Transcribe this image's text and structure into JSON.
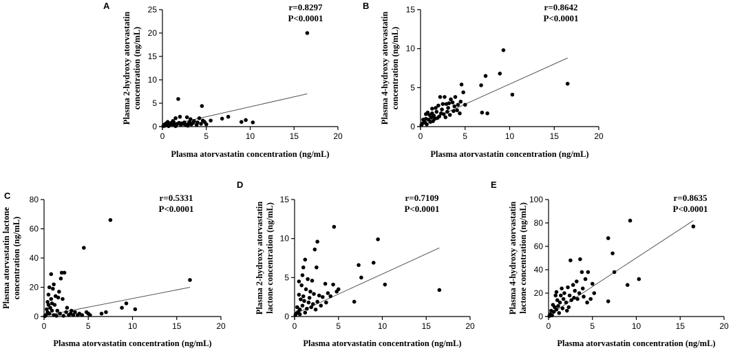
{
  "chart_data": [
    {
      "panel": "A",
      "type": "scatter",
      "xlabel": "Plasma atorvastatin concentration (ng/mL)",
      "ylabel_lines": [
        "Plasma 2-hydroxy atorvastatin",
        "concentration (ng/mL)"
      ],
      "xlim": [
        0,
        20
      ],
      "ylim": [
        0,
        25
      ],
      "xticks": [
        0,
        5,
        10,
        15,
        20
      ],
      "yticks": [
        0,
        5,
        10,
        15,
        20,
        25
      ],
      "r": "r=0.8297",
      "p": "P<0.0001",
      "fit": {
        "x": [
          0,
          16.5
        ],
        "y": [
          0.0,
          7.0
        ]
      },
      "points": [
        [
          16.5,
          20
        ],
        [
          1.8,
          5.9
        ],
        [
          4.5,
          4.4
        ],
        [
          7.5,
          2.1
        ],
        [
          6.8,
          1.7
        ],
        [
          9.5,
          1.4
        ],
        [
          9.0,
          1.0
        ],
        [
          10.3,
          0.9
        ],
        [
          2.0,
          2.1
        ],
        [
          2.8,
          2.0
        ],
        [
          3.2,
          1.6
        ],
        [
          1.5,
          1.8
        ],
        [
          4.2,
          1.8
        ],
        [
          3.6,
          1.2
        ],
        [
          4.8,
          1.0
        ],
        [
          5.5,
          1.3
        ],
        [
          0.6,
          1.0
        ],
        [
          1.2,
          1.2
        ],
        [
          2.5,
          0.9
        ],
        [
          3.0,
          0.7
        ],
        [
          1.0,
          0.8
        ],
        [
          0.3,
          0.2
        ],
        [
          0.5,
          0.5
        ],
        [
          0.8,
          0.3
        ],
        [
          1.1,
          0.5
        ],
        [
          1.4,
          0.3
        ],
        [
          1.7,
          0.6
        ],
        [
          2.1,
          0.4
        ],
        [
          2.4,
          0.6
        ],
        [
          2.7,
          0.3
        ],
        [
          3.3,
          0.5
        ],
        [
          3.9,
          0.4
        ],
        [
          4.4,
          0.6
        ],
        [
          0.2,
          0.4
        ],
        [
          0.4,
          0.7
        ],
        [
          0.9,
          0.6
        ],
        [
          1.3,
          0.9
        ],
        [
          1.6,
          0.4
        ],
        [
          1.9,
          0.8
        ],
        [
          2.2,
          0.7
        ],
        [
          2.6,
          0.5
        ],
        [
          3.1,
          1.0
        ],
        [
          3.5,
          0.8
        ],
        [
          4.0,
          0.9
        ],
        [
          0.7,
          0.1
        ],
        [
          1.5,
          0.1
        ],
        [
          2.9,
          0.2
        ],
        [
          0.1,
          0.1
        ],
        [
          5.0,
          0.5
        ],
        [
          4.6,
          1.3
        ]
      ]
    },
    {
      "panel": "B",
      "type": "scatter",
      "xlabel": "Plasma atorvastatin concentration (ng/mL)",
      "ylabel_lines": [
        "Plasma 4-hydroxy atorvastatin",
        "concentration (ng/mL)"
      ],
      "xlim": [
        0,
        20
      ],
      "ylim": [
        0,
        15
      ],
      "xticks": [
        0,
        5,
        10,
        15,
        20
      ],
      "yticks": [
        0,
        5,
        10,
        15
      ],
      "r": "r=0.8642",
      "p": "P<0.0001",
      "fit": {
        "x": [
          0,
          16.5
        ],
        "y": [
          0.3,
          8.8
        ]
      },
      "points": [
        [
          9.3,
          9.8
        ],
        [
          8.9,
          6.8
        ],
        [
          7.3,
          6.5
        ],
        [
          6.8,
          5.3
        ],
        [
          16.5,
          5.5
        ],
        [
          10.3,
          4.1
        ],
        [
          4.8,
          4.4
        ],
        [
          4.6,
          5.4
        ],
        [
          2.2,
          3.8
        ],
        [
          2.7,
          3.8
        ],
        [
          3.4,
          3.5
        ],
        [
          3.9,
          3.8
        ],
        [
          4.2,
          2.8
        ],
        [
          3.6,
          3.1
        ],
        [
          2.9,
          2.9
        ],
        [
          1.7,
          2.4
        ],
        [
          1.3,
          2.3
        ],
        [
          2.0,
          2.7
        ],
        [
          2.4,
          2.2
        ],
        [
          3.1,
          2.4
        ],
        [
          3.8,
          2.6
        ],
        [
          4.5,
          3.2
        ],
        [
          5.0,
          2.8
        ],
        [
          6.9,
          1.8
        ],
        [
          7.5,
          1.7
        ],
        [
          0.8,
          1.8
        ],
        [
          1.0,
          1.5
        ],
        [
          1.5,
          1.4
        ],
        [
          1.8,
          1.9
        ],
        [
          2.3,
          1.7
        ],
        [
          2.6,
          1.6
        ],
        [
          3.0,
          1.9
        ],
        [
          3.3,
          1.5
        ],
        [
          3.7,
          2.0
        ],
        [
          4.1,
          2.1
        ],
        [
          4.4,
          1.7
        ],
        [
          0.4,
          0.8
        ],
        [
          0.6,
          1.0
        ],
        [
          0.9,
          0.9
        ],
        [
          1.2,
          1.2
        ],
        [
          1.6,
          1.0
        ],
        [
          1.9,
          1.1
        ],
        [
          2.1,
          1.3
        ],
        [
          0.2,
          0.4
        ],
        [
          0.3,
          0.9
        ],
        [
          0.5,
          0.5
        ],
        [
          0.7,
          0.3
        ],
        [
          1.1,
          0.6
        ],
        [
          1.4,
          0.7
        ],
        [
          2.8,
          1.2
        ],
        [
          0.1,
          0.2
        ],
        [
          0.6,
          1.6
        ],
        [
          1.3,
          1.7
        ],
        [
          2.5,
          2.9
        ],
        [
          3.2,
          3.0
        ]
      ]
    },
    {
      "panel": "C",
      "type": "scatter",
      "xlabel": "Plasma atorvastatin concentration (ng/mL)",
      "ylabel_lines": [
        "Plasma atorvastatin lactone",
        "concentration (ng/mL)"
      ],
      "xlim": [
        0,
        20
      ],
      "ylim": [
        0,
        80
      ],
      "xticks": [
        0,
        5,
        10,
        15,
        20
      ],
      "yticks": [
        0,
        20,
        40,
        60,
        80
      ],
      "r": "r=0.5331",
      "p": "P<0.0001",
      "fit": {
        "x": [
          0,
          16.5
        ],
        "y": [
          0.5,
          20.0
        ]
      },
      "points": [
        [
          7.5,
          66
        ],
        [
          4.5,
          47
        ],
        [
          16.5,
          25
        ],
        [
          2.0,
          30
        ],
        [
          2.3,
          30
        ],
        [
          1.9,
          26
        ],
        [
          0.8,
          29
        ],
        [
          0.6,
          20
        ],
        [
          1.0,
          19
        ],
        [
          0.5,
          15
        ],
        [
          1.3,
          14
        ],
        [
          1.6,
          13
        ],
        [
          2.1,
          12
        ],
        [
          0.4,
          10
        ],
        [
          0.9,
          9
        ],
        [
          1.2,
          8
        ],
        [
          0.7,
          6
        ],
        [
          0.3,
          5
        ],
        [
          1.5,
          4
        ],
        [
          9.3,
          9
        ],
        [
          8.8,
          6
        ],
        [
          10.3,
          5
        ],
        [
          7.0,
          3
        ],
        [
          6.5,
          2
        ],
        [
          2.5,
          3
        ],
        [
          3.0,
          2
        ],
        [
          3.5,
          3
        ],
        [
          4.0,
          2
        ],
        [
          4.8,
          3
        ],
        [
          5.2,
          1
        ],
        [
          2.8,
          1
        ],
        [
          3.3,
          1
        ],
        [
          3.8,
          1
        ],
        [
          4.3,
          1
        ],
        [
          1.8,
          2
        ],
        [
          1.1,
          1
        ],
        [
          0.2,
          1
        ],
        [
          0.6,
          2
        ],
        [
          0.4,
          3
        ],
        [
          0.9,
          4
        ],
        [
          1.4,
          0.5
        ],
        [
          2.2,
          0.5
        ],
        [
          0.1,
          0.3
        ],
        [
          5.0,
          2
        ],
        [
          3.1,
          4
        ],
        [
          2.6,
          6
        ],
        [
          1.7,
          17
        ],
        [
          1.1,
          22
        ],
        [
          0.8,
          12
        ],
        [
          0.5,
          8
        ]
      ]
    },
    {
      "panel": "D",
      "type": "scatter",
      "xlabel": "Plasma atorvastatin concentration (ng/mL)",
      "ylabel_lines": [
        "Plasma 2-hydroxy atorvastatin",
        "lactone concentration (ng/mL)"
      ],
      "xlim": [
        0,
        20
      ],
      "ylim": [
        0,
        15
      ],
      "xticks": [
        0,
        5,
        10,
        15,
        20
      ],
      "yticks": [
        0,
        5,
        10,
        15
      ],
      "r": "r=0.7109",
      "p": "P<0.0001",
      "fit": {
        "x": [
          0,
          16.5
        ],
        "y": [
          0.3,
          8.8
        ]
      },
      "points": [
        [
          4.5,
          11.5
        ],
        [
          9.5,
          9.9
        ],
        [
          2.6,
          9.6
        ],
        [
          2.3,
          8.6
        ],
        [
          9.0,
          6.9
        ],
        [
          7.3,
          6.6
        ],
        [
          7.6,
          5.0
        ],
        [
          10.3,
          4.1
        ],
        [
          16.5,
          3.4
        ],
        [
          1.2,
          7.3
        ],
        [
          1.0,
          6.3
        ],
        [
          2.5,
          6.3
        ],
        [
          0.9,
          5.3
        ],
        [
          1.5,
          4.8
        ],
        [
          2.0,
          4.6
        ],
        [
          3.5,
          4.2
        ],
        [
          4.4,
          4.1
        ],
        [
          4.8,
          3.2
        ],
        [
          6.8,
          1.9
        ],
        [
          0.8,
          4.0
        ],
        [
          1.3,
          3.5
        ],
        [
          1.8,
          3.2
        ],
        [
          2.2,
          2.9
        ],
        [
          2.8,
          2.7
        ],
        [
          3.2,
          2.5
        ],
        [
          3.8,
          3.0
        ],
        [
          0.5,
          2.8
        ],
        [
          0.7,
          2.2
        ],
        [
          1.1,
          2.0
        ],
        [
          1.6,
          1.8
        ],
        [
          2.1,
          1.6
        ],
        [
          2.6,
          1.9
        ],
        [
          3.0,
          1.4
        ],
        [
          0.3,
          1.2
        ],
        [
          0.6,
          0.9
        ],
        [
          0.9,
          1.4
        ],
        [
          1.4,
          1.0
        ],
        [
          1.9,
          1.2
        ],
        [
          2.4,
          0.9
        ],
        [
          0.2,
          0.4
        ],
        [
          0.4,
          0.6
        ],
        [
          0.1,
          0.2
        ],
        [
          0.6,
          0.3
        ],
        [
          1.2,
          0.5
        ],
        [
          3.6,
          1.8
        ],
        [
          4.1,
          2.6
        ],
        [
          5.0,
          3.5
        ],
        [
          1.0,
          2.6
        ],
        [
          0.5,
          4.5
        ],
        [
          1.7,
          2.4
        ]
      ]
    },
    {
      "panel": "E",
      "type": "scatter",
      "xlabel": "Plasma atorvastatin concentration (ng/mL)",
      "ylabel_lines": [
        "Plasma 4-hydroxy atorvastatin",
        "lactone concentration (ng/mL)"
      ],
      "xlim": [
        0,
        20
      ],
      "ylim": [
        0,
        100
      ],
      "xticks": [
        0,
        5,
        10,
        15,
        20
      ],
      "yticks": [
        0,
        20,
        40,
        60,
        80,
        100
      ],
      "r": "r=0.8635",
      "p": "P<0.0001",
      "fit": {
        "x": [
          0,
          16.5
        ],
        "y": [
          1.0,
          82.0
        ]
      },
      "points": [
        [
          9.3,
          82
        ],
        [
          16.5,
          77
        ],
        [
          6.8,
          67
        ],
        [
          7.3,
          54
        ],
        [
          3.6,
          49
        ],
        [
          2.5,
          48
        ],
        [
          7.5,
          38
        ],
        [
          10.3,
          32
        ],
        [
          9.0,
          27
        ],
        [
          6.8,
          13
        ],
        [
          4.5,
          38
        ],
        [
          3.8,
          38
        ],
        [
          4.2,
          32
        ],
        [
          5.0,
          28
        ],
        [
          3.2,
          30
        ],
        [
          2.8,
          27
        ],
        [
          2.2,
          25
        ],
        [
          1.5,
          24
        ],
        [
          1.8,
          20
        ],
        [
          2.4,
          18
        ],
        [
          3.0,
          22
        ],
        [
          3.5,
          20
        ],
        [
          4.0,
          17
        ],
        [
          4.8,
          15
        ],
        [
          5.2,
          20
        ],
        [
          1.0,
          14
        ],
        [
          1.3,
          12
        ],
        [
          0.8,
          18
        ],
        [
          2.0,
          12
        ],
        [
          2.6,
          14
        ],
        [
          3.3,
          15
        ],
        [
          0.5,
          10
        ],
        [
          0.7,
          8
        ],
        [
          1.1,
          9
        ],
        [
          1.6,
          7
        ],
        [
          2.3,
          8
        ],
        [
          0.3,
          5
        ],
        [
          0.6,
          4
        ],
        [
          0.9,
          6
        ],
        [
          1.2,
          3
        ],
        [
          0.2,
          2
        ],
        [
          0.4,
          1
        ],
        [
          0.1,
          0.5
        ],
        [
          1.7,
          15
        ],
        [
          2.9,
          16
        ],
        [
          3.9,
          24
        ],
        [
          4.4,
          12
        ],
        [
          2.1,
          5
        ],
        [
          1.4,
          18
        ],
        [
          0.9,
          21
        ]
      ]
    }
  ]
}
